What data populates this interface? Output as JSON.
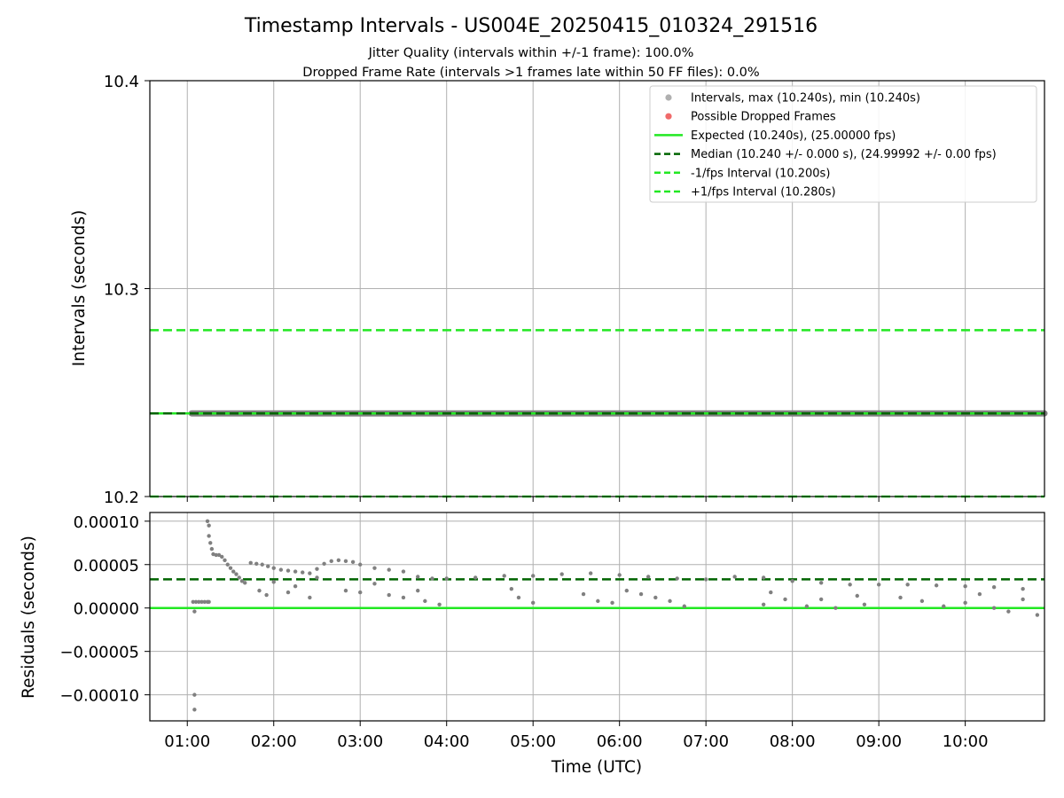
{
  "chart_data": [
    {
      "type": "scatter",
      "title": "Timestamp Intervals - US004E_20250415_010324_291516",
      "subtitle_lines": [
        "Jitter Quality (intervals within +/-1 frame): 100.0%",
        "Dropped Frame Rate (intervals >1 frames late within 50 FF files): 0.0%"
      ],
      "ylabel": "Intervals (seconds)",
      "ylim": [
        10.2,
        10.4
      ],
      "yticks": [
        "10.2",
        "10.3",
        "10.4"
      ],
      "grid": true,
      "legend_position": "upper right",
      "legend": [
        "Intervals, max (10.240s), min (10.240s)",
        "Possible Dropped Frames",
        "Expected (10.240s), (25.00000 fps)",
        "Median (10.240 +/- 0.000 s), (24.99992 +/- 0.00 fps)",
        "-1/fps Interval (10.200s)",
        "+1/fps Interval (10.280s)"
      ],
      "reference_lines": {
        "expected": 10.24,
        "median": 10.24,
        "minus_1_fps": 10.2,
        "plus_1_fps": 10.28
      },
      "series": [
        {
          "name": "Intervals, max (10.240s), min (10.240s)",
          "x_range": [
            "01:03",
            "10:55"
          ],
          "y": 10.24
        }
      ],
      "colors": {
        "points": "#808080",
        "dropped": "#e8474a",
        "expected": "#22e822",
        "median": "#006400",
        "fps_limits": "#22e822"
      }
    },
    {
      "type": "scatter",
      "xlabel": "Time (UTC)",
      "ylabel": "Residuals (seconds)",
      "ylim": [
        -0.00013,
        0.00011
      ],
      "yticks": [
        "0.00010",
        "0.00005",
        "0.00000",
        "−0.00005",
        "−0.00010"
      ],
      "xlim": [
        "00:34",
        "10:55"
      ],
      "xticks": [
        "01:00",
        "02:00",
        "03:00",
        "04:00",
        "05:00",
        "06:00",
        "07:00",
        "08:00",
        "09:00",
        "10:00"
      ],
      "grid": true,
      "reference_lines": {
        "expected": 0.0,
        "median": 3.3e-05
      },
      "series": [
        {
          "name": "Residuals",
          "points": [
            [
              "01:04",
              7e-06
            ],
            [
              "01:06",
              7e-06
            ],
            [
              "01:08",
              7e-06
            ],
            [
              "01:10",
              7e-06
            ],
            [
              "01:12",
              7e-06
            ],
            [
              "01:14",
              7e-06
            ],
            [
              "01:15",
              7e-06
            ],
            [
              "01:05",
              -0.0001
            ],
            [
              "01:05",
              -0.000117
            ],
            [
              "01:05",
              -4e-06
            ],
            [
              "01:14",
              0.0001
            ],
            [
              "01:15",
              9.5e-05
            ],
            [
              "01:15",
              8.3e-05
            ],
            [
              "01:16",
              7.5e-05
            ],
            [
              "01:17",
              6.8e-05
            ],
            [
              "01:18",
              6.2e-05
            ],
            [
              "01:20",
              6.1e-05
            ],
            [
              "01:22",
              6.1e-05
            ],
            [
              "01:24",
              5.9e-05
            ],
            [
              "01:26",
              5.5e-05
            ],
            [
              "01:28",
              5e-05
            ],
            [
              "01:30",
              4.6e-05
            ],
            [
              "01:32",
              4.2e-05
            ],
            [
              "01:34",
              3.9e-05
            ],
            [
              "01:36",
              3.5e-05
            ],
            [
              "01:38",
              3.1e-05
            ],
            [
              "01:40",
              2.9e-05
            ],
            [
              "01:44",
              5.2e-05
            ],
            [
              "01:48",
              5.1e-05
            ],
            [
              "01:52",
              5e-05
            ],
            [
              "01:56",
              4.8e-05
            ],
            [
              "02:00",
              4.6e-05
            ],
            [
              "02:05",
              4.4e-05
            ],
            [
              "02:10",
              4.3e-05
            ],
            [
              "02:15",
              4.2e-05
            ],
            [
              "02:20",
              4.1e-05
            ],
            [
              "02:25",
              4e-05
            ],
            [
              "02:30",
              4.5e-05
            ],
            [
              "02:35",
              5.1e-05
            ],
            [
              "02:40",
              5.4e-05
            ],
            [
              "02:45",
              5.5e-05
            ],
            [
              "02:50",
              5.4e-05
            ],
            [
              "02:55",
              5.3e-05
            ],
            [
              "03:00",
              5e-05
            ],
            [
              "03:10",
              4.6e-05
            ],
            [
              "03:20",
              4.4e-05
            ],
            [
              "03:30",
              4.2e-05
            ],
            [
              "03:40",
              3.6e-05
            ],
            [
              "03:50",
              3.4e-05
            ],
            [
              "04:00",
              3.4e-05
            ],
            [
              "04:20",
              3.5e-05
            ],
            [
              "04:40",
              3.7e-05
            ],
            [
              "05:00",
              3.7e-05
            ],
            [
              "05:20",
              3.9e-05
            ],
            [
              "05:40",
              4e-05
            ],
            [
              "06:00",
              3.8e-05
            ],
            [
              "06:20",
              3.6e-05
            ],
            [
              "06:40",
              3.4e-05
            ],
            [
              "07:00",
              3.3e-05
            ],
            [
              "07:20",
              3.6e-05
            ],
            [
              "07:40",
              3.5e-05
            ],
            [
              "08:00",
              3.1e-05
            ],
            [
              "08:20",
              2.9e-05
            ],
            [
              "08:40",
              2.7e-05
            ],
            [
              "09:00",
              2.7e-05
            ],
            [
              "09:20",
              2.7e-05
            ],
            [
              "09:40",
              2.6e-05
            ],
            [
              "10:00",
              2.5e-05
            ],
            [
              "10:20",
              2.4e-05
            ],
            [
              "10:40",
              2.2e-05
            ],
            [
              "01:50",
              2e-05
            ],
            [
              "01:55",
              1.5e-05
            ],
            [
              "02:00",
              3e-05
            ],
            [
              "02:10",
              1.8e-05
            ],
            [
              "02:15",
              2.5e-05
            ],
            [
              "02:25",
              1.2e-05
            ],
            [
              "02:30",
              3.5e-05
            ],
            [
              "02:50",
              2e-05
            ],
            [
              "03:00",
              1.8e-05
            ],
            [
              "03:10",
              2.8e-05
            ],
            [
              "03:20",
              1.5e-05
            ],
            [
              "03:30",
              1.2e-05
            ],
            [
              "03:40",
              2e-05
            ],
            [
              "03:45",
              8e-06
            ],
            [
              "03:55",
              4e-06
            ],
            [
              "04:45",
              2.2e-05
            ],
            [
              "04:50",
              1.2e-05
            ],
            [
              "05:00",
              6e-06
            ],
            [
              "05:35",
              1.6e-05
            ],
            [
              "05:45",
              8e-06
            ],
            [
              "05:55",
              6e-06
            ],
            [
              "06:05",
              2e-05
            ],
            [
              "06:15",
              1.6e-05
            ],
            [
              "06:25",
              1.2e-05
            ],
            [
              "06:35",
              8e-06
            ],
            [
              "06:45",
              2e-06
            ],
            [
              "07:40",
              4e-06
            ],
            [
              "07:45",
              1.8e-05
            ],
            [
              "07:55",
              1e-05
            ],
            [
              "08:10",
              2e-06
            ],
            [
              "08:20",
              1e-05
            ],
            [
              "08:30",
              0.0
            ],
            [
              "08:45",
              1.4e-05
            ],
            [
              "08:50",
              4e-06
            ],
            [
              "09:15",
              1.2e-05
            ],
            [
              "09:30",
              8e-06
            ],
            [
              "09:45",
              2e-06
            ],
            [
              "10:00",
              6e-06
            ],
            [
              "10:10",
              1.6e-05
            ],
            [
              "10:20",
              0.0
            ],
            [
              "10:30",
              -4e-06
            ],
            [
              "10:40",
              1e-05
            ],
            [
              "10:50",
              -8e-06
            ]
          ]
        }
      ]
    }
  ]
}
